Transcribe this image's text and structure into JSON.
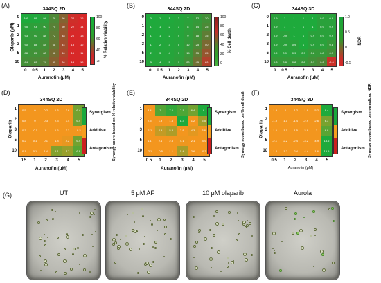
{
  "panels": {
    "A": {
      "label": "(A)",
      "title": "344SQ 2D",
      "ylabel": "Olaparib (μM)",
      "xlabel": "Auranofin (μM)",
      "cbar_label": "% Relative viability",
      "cbar_ticks": [
        "100",
        "80",
        "60",
        "40",
        "20"
      ]
    },
    "B": {
      "label": "(B)",
      "title": "344SQ 2D",
      "ylabel": "",
      "xlabel": "Auranofin (μM)",
      "cbar_label": "% Cell death",
      "cbar_ticks": [
        "100",
        "80",
        "60",
        "40",
        "20",
        "0"
      ]
    },
    "C": {
      "label": "(C)",
      "title": "344SQ 3D",
      "ylabel": "",
      "xlabel": "Auranofin (μM)",
      "cbar_label": "NDR",
      "cbar_ticks": [
        "1.0",
        "0.5",
        "0",
        "-0.5"
      ]
    },
    "D": {
      "label": "(D)",
      "title": "344SQ 2D",
      "ylabel": "Olaparib",
      "xlabel": "Auranofin (μM)",
      "cbar_label": "Synergy score based on % relative viability"
    },
    "E": {
      "label": "(E)",
      "title": "344SQ 2D",
      "ylabel": "",
      "xlabel": "Auranofin (μM)",
      "cbar_label": "Synergy score based on % cell death"
    },
    "F": {
      "label": "(F)",
      "title": "344SQ  3D",
      "ylabel": "Olaparib",
      "xlabel": "Auranofin (μM)",
      "cbar_label": "Synergy score based on normalized NDR"
    },
    "G": {
      "label": "(G)"
    }
  },
  "axes": {
    "top_y_ticks": [
      "0",
      "1",
      "2",
      "3",
      "5",
      "10"
    ],
    "top_x_ticks": [
      "0",
      "0.5",
      "1",
      "2",
      "3",
      "4",
      "5"
    ],
    "bottom_y_ticks": [
      "1",
      "2",
      "3",
      "5",
      "10"
    ],
    "bottom_x_ticks": [
      "0.5",
      "1",
      "2",
      "3",
      "4",
      "5"
    ]
  },
  "synergy_zones": {
    "synergism": "Synergism",
    "additive": "Additive",
    "antagonism": "Antagonism"
  },
  "micrographs": [
    {
      "title": "UT"
    },
    {
      "title": "5 μM AF"
    },
    {
      "title": "10 μM olaparib"
    },
    {
      "title": "Aurola"
    }
  ],
  "chart_data": [
    {
      "type": "heatmap",
      "panel": "A",
      "x": [
        0,
        0.5,
        1,
        2,
        3,
        4,
        5
      ],
      "y": [
        0,
        1,
        2,
        3,
        5,
        10
      ],
      "z": [
        [
          100,
          99,
          94,
          79,
          56,
          24,
          16
        ],
        [
          95,
          93,
          90,
          75,
          50,
          22,
          14
        ],
        [
          93,
          90,
          88,
          72,
          48,
          20,
          13
        ],
        [
          90,
          88,
          84,
          68,
          44,
          18,
          12
        ],
        [
          88,
          85,
          80,
          62,
          40,
          16,
          11
        ],
        [
          84,
          80,
          74,
          55,
          34,
          14,
          10
        ]
      ],
      "zlim": [
        20,
        100
      ]
    },
    {
      "type": "heatmap",
      "panel": "B",
      "x": [
        0,
        0.5,
        1,
        2,
        3,
        4,
        5
      ],
      "y": [
        0,
        1,
        2,
        3,
        5,
        10
      ],
      "z": [
        [
          0,
          1,
          1,
          3,
          7,
          12,
          20
        ],
        [
          1,
          1,
          2,
          3,
          8,
          14,
          25
        ],
        [
          1,
          1,
          2,
          4,
          9,
          18,
          35
        ],
        [
          1,
          2,
          3,
          5,
          12,
          25,
          50
        ],
        [
          2,
          3,
          4,
          7,
          15,
          35,
          65
        ],
        [
          3,
          4,
          5,
          9,
          20,
          45,
          80
        ]
      ],
      "zlim": [
        0,
        100
      ]
    },
    {
      "type": "heatmap",
      "panel": "C",
      "x": [
        0,
        0.5,
        1,
        2,
        3,
        4,
        5
      ],
      "y": [
        0,
        1,
        2,
        3,
        5,
        10
      ],
      "z": [
        [
          0.9,
          1.0,
          1.0,
          1.0,
          1.0,
          0.9,
          0.9
        ],
        [
          0.9,
          1.0,
          1.0,
          1.0,
          1.0,
          0.9,
          0.9
        ],
        [
          0.9,
          0.9,
          1.0,
          1.0,
          0.9,
          0.9,
          0.9
        ],
        [
          0.9,
          0.9,
          0.9,
          1.0,
          0.9,
          0.9,
          0.8
        ],
        [
          0.9,
          0.9,
          0.9,
          0.9,
          0.8,
          0.8,
          0.7
        ],
        [
          0.8,
          0.8,
          0.8,
          0.8,
          0.7,
          0.6,
          -0.4
        ]
      ],
      "zlim": [
        -0.5,
        1.0
      ]
    },
    {
      "type": "heatmap",
      "panel": "D",
      "x": [
        0.5,
        1,
        2,
        3,
        4,
        5
      ],
      "y": [
        1,
        2,
        3,
        5,
        10
      ],
      "z": [
        [
          0.5,
          0.0,
          0.2,
          1.3,
          3.6,
          6.4
        ],
        [
          0.8,
          0.0,
          0.3,
          2.3,
          3.4,
          6.4
        ],
        [
          0.3,
          -0.1,
          0.0,
          1.6,
          3.2,
          -0.2
        ],
        [
          0.2,
          0.1,
          0.1,
          1.8,
          4.2,
          6.4
        ],
        [
          0.1,
          0.1,
          1.4,
          6.1,
          5.7,
          6.9
        ]
      ]
    },
    {
      "type": "heatmap",
      "panel": "E",
      "x": [
        0.5,
        1,
        2,
        3,
        4,
        5
      ],
      "y": [
        1,
        2,
        3,
        5,
        10
      ],
      "z": [
        [
          3.4,
          7.0,
          7.6,
          7.1,
          6.4,
          8.0
        ],
        [
          2.5,
          1.9,
          1.5,
          8.3,
          1.2,
          5.5
        ],
        [
          -1.1,
          4.9,
          5.3,
          2.8,
          4.3,
          3.6
        ],
        [
          1.1,
          2.1,
          2.5,
          4.1,
          2.1,
          -0.6
        ],
        [
          -2.1,
          -0.5,
          1.1,
          5.4,
          2.6,
          -0.3
        ]
      ]
    },
    {
      "type": "heatmap",
      "panel": "F",
      "x": [
        0.5,
        1,
        2,
        3,
        4,
        5
      ],
      "y": [
        1,
        2,
        3,
        5,
        10
      ],
      "z": [
        [
          -1.9,
          -1.0,
          -1.2,
          -1.9,
          -5.2,
          8.4
        ],
        [
          -1.9,
          -1.1,
          -1.4,
          -2.9,
          -2.6,
          6.3
        ],
        [
          -1.6,
          -1.1,
          -1.5,
          -2.9,
          -3.0,
          6.9
        ],
        [
          -2.1,
          -2.2,
          -2.4,
          -3.2,
          -4.9,
          13.6
        ],
        [
          -1.2,
          -1.7,
          -2.4,
          -4.4,
          -1.6,
          15.5
        ]
      ]
    }
  ]
}
